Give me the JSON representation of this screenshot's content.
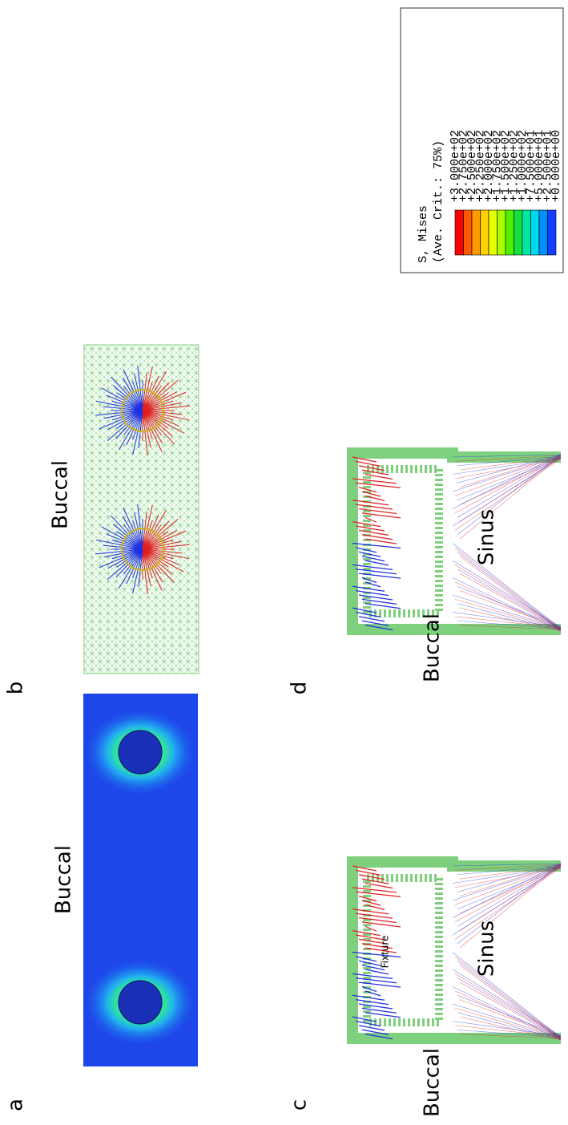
{
  "panels": [
    {
      "label": "a",
      "annotations": [
        "Buccal"
      ]
    },
    {
      "label": "b",
      "annotations": [
        "Buccal"
      ]
    },
    {
      "label": "c",
      "annotations": [
        "Buccal",
        "Sinus",
        "Fixture"
      ]
    },
    {
      "label": "d",
      "annotations": [
        "Buccal",
        "Sinus"
      ]
    }
  ],
  "legend": {
    "title": "S, Mises",
    "subtitle": "(Ave. Crit.: 75%)",
    "values": [
      "+3.000e+02",
      "+2.750e+02",
      "+2.500e+02",
      "+2.250e+02",
      "+2.000e+02",
      "+1.750e+02",
      "+1.500e+02",
      "+1.250e+02",
      "+1.000e+02",
      "+7.500e+01",
      "+5.000e+01",
      "+2.500e+01",
      "+0.000e+00"
    ]
  }
}
